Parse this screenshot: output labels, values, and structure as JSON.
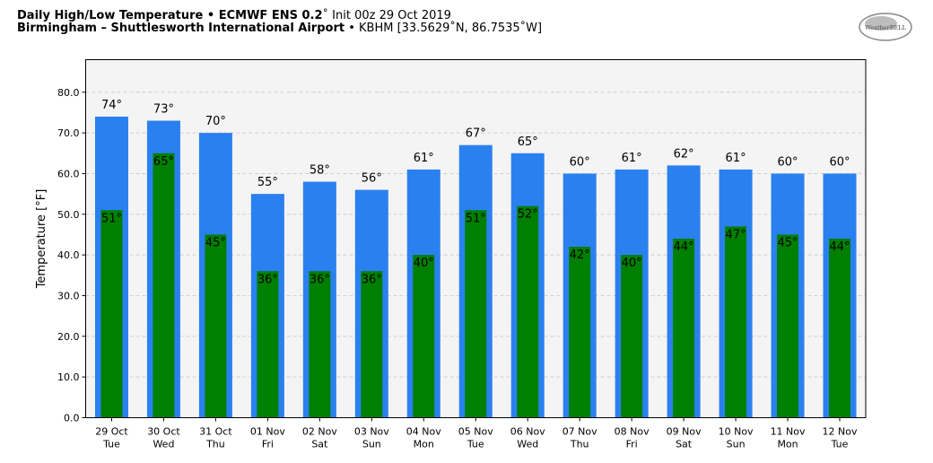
{
  "header": {
    "title_bold": "Daily High/Low Temperature • ECMWF ENS 0.2",
    "title_degree": "˚",
    "title_rest": " Init 00z 29 Oct 2019",
    "location_bold": "Birmingham – Shuttlesworth International Airport",
    "location_rest": " • KBHM [33.5629˚N, 86.7535˚W]"
  },
  "logo": {
    "text": "WeatherBELL",
    "icon": "weatherbell-logo"
  },
  "colors": {
    "high": "#2b80f0",
    "low": "#007f00",
    "plot_bg": "#f4f4f4"
  },
  "chart_data": {
    "type": "bar",
    "title": "Daily High/Low Temperature • ECMWF ENS 0.2˚ Init 00z 29 Oct 2019",
    "subtitle": "Birmingham – Shuttlesworth International Airport • KBHM [33.5629˚N, 86.7535˚W]",
    "ylabel": "Temperature [°F]",
    "xlabel": "",
    "ylim": [
      0,
      88
    ],
    "yticks": [
      "0.0",
      "10.0",
      "20.0",
      "30.0",
      "40.0",
      "50.0",
      "60.0",
      "70.0",
      "80.0"
    ],
    "grid": true,
    "categories": [
      "29 Oct",
      "30 Oct",
      "31 Oct",
      "01 Nov",
      "02 Nov",
      "03 Nov",
      "04 Nov",
      "05 Nov",
      "06 Nov",
      "07 Nov",
      "08 Nov",
      "09 Nov",
      "10 Nov",
      "11 Nov",
      "12 Nov"
    ],
    "weekdays": [
      "Tue",
      "Wed",
      "Thu",
      "Fri",
      "Sat",
      "Sun",
      "Mon",
      "Tue",
      "Wed",
      "Thu",
      "Fri",
      "Sat",
      "Sun",
      "Mon",
      "Tue"
    ],
    "series": [
      {
        "values": [
          74,
          73,
          70,
          55,
          58,
          56,
          61,
          67,
          65,
          60,
          61,
          62,
          61,
          60,
          60
        ],
        "labels": [
          "74°",
          "73°",
          "70°",
          "55°",
          "58°",
          "56°",
          "61°",
          "67°",
          "65°",
          "60°",
          "61°",
          "62°",
          "61°",
          "60°",
          "60°"
        ]
      },
      {
        "values": [
          51,
          65,
          45,
          36,
          36,
          36,
          40,
          51,
          52,
          42,
          40,
          44,
          47,
          45,
          44
        ],
        "labels": [
          "51°",
          "65°",
          "45°",
          "36°",
          "36°",
          "36°",
          "40°",
          "51°",
          "52°",
          "42°",
          "40°",
          "44°",
          "47°",
          "45°",
          "44°"
        ]
      }
    ]
  }
}
